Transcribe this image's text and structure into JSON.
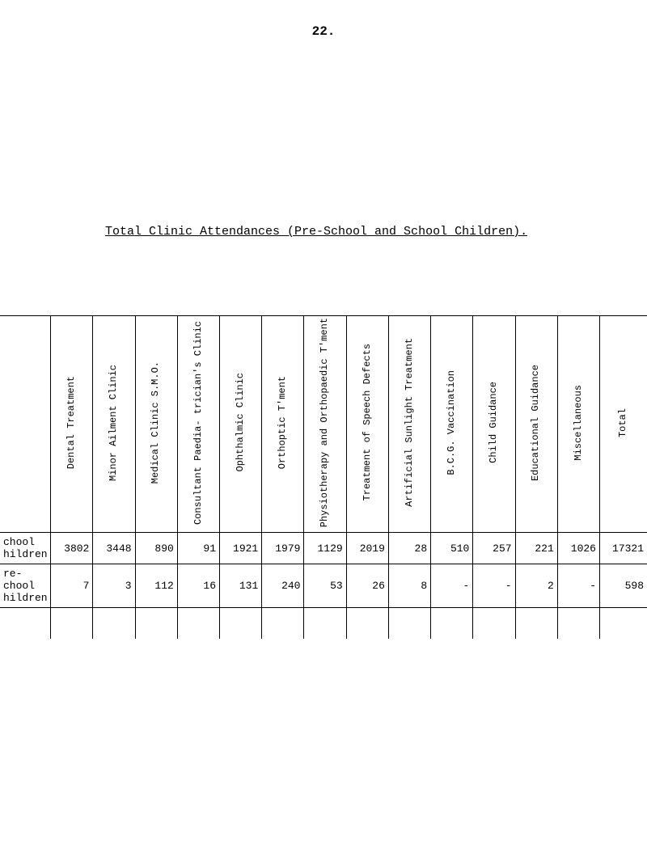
{
  "page_number": "22.",
  "title": "Total Clinic Attendances (Pre-School and School Children).",
  "table": {
    "columns": [
      "Dental Treatment",
      "Minor Ailment\nClinic",
      "Medical Clinic\nS.M.O.",
      "Consultant Paedia-\ntrician's Clinic",
      "Ophthalmic Clinic",
      "Orthoptic T'ment",
      "Physiotherapy and\nOrthopaedic T'ment",
      "Treatment of Speech\nDefects",
      "Artificial Sunlight\nTreatment",
      "B.C.G. Vaccination",
      "Child Guidance",
      "Educational\nGuidance",
      "Miscellaneous",
      "Total"
    ],
    "rows": [
      {
        "label": "chool\nhildren",
        "values": [
          "3802",
          "3448",
          "890",
          "91",
          "1921",
          "1979",
          "1129",
          "2019",
          "28",
          "510",
          "257",
          "221",
          "1026",
          "17321"
        ]
      },
      {
        "label": "re-\nchool\nhildren",
        "values": [
          "7",
          "3",
          "112",
          "16",
          "131",
          "240",
          "53",
          "26",
          "8",
          "-",
          "-",
          "2",
          "-",
          "598"
        ]
      }
    ]
  }
}
